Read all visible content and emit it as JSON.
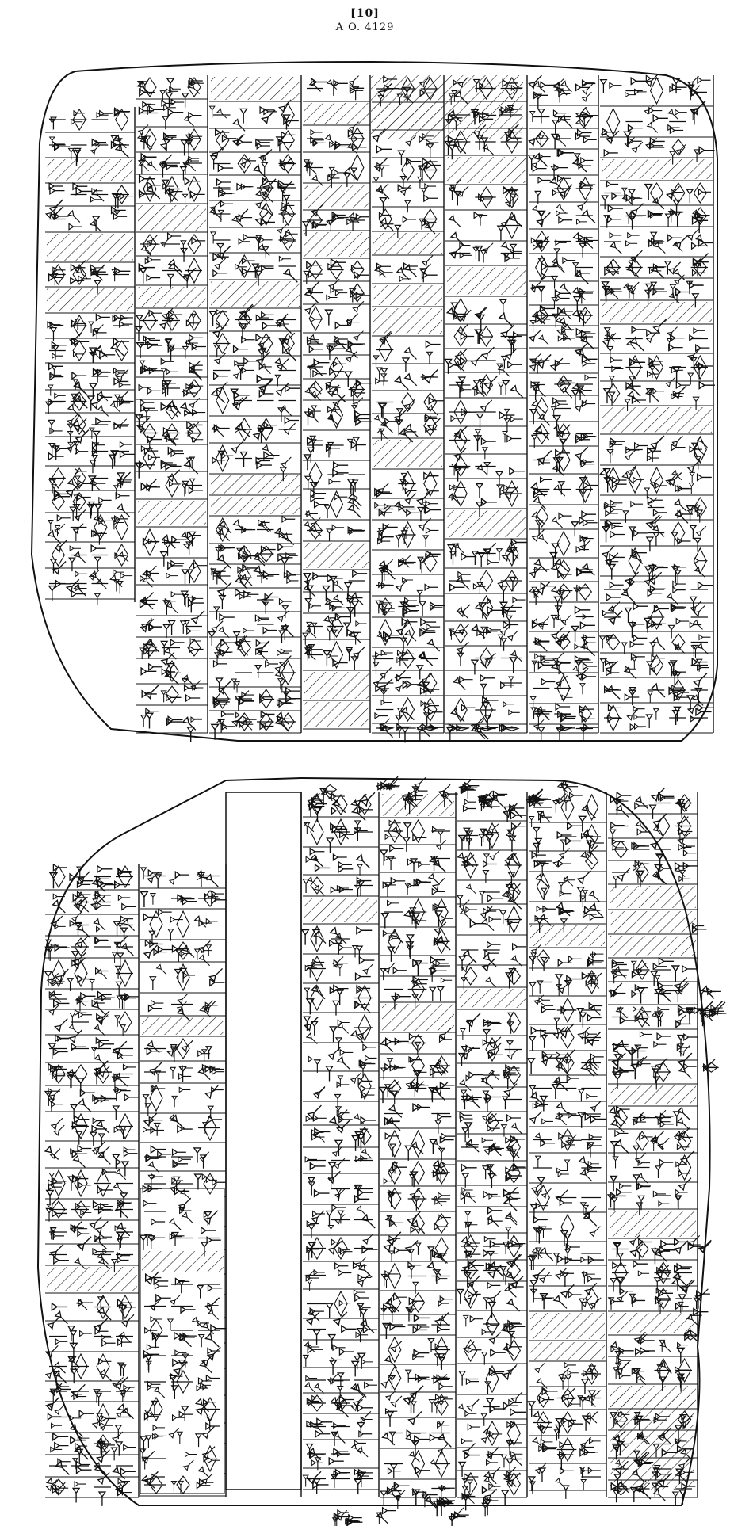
{
  "header": {
    "plate_number": "[10]",
    "catalog_id": "A O. 4129"
  },
  "colors": {
    "ink": "#111111",
    "paper": "#ffffff"
  }
}
